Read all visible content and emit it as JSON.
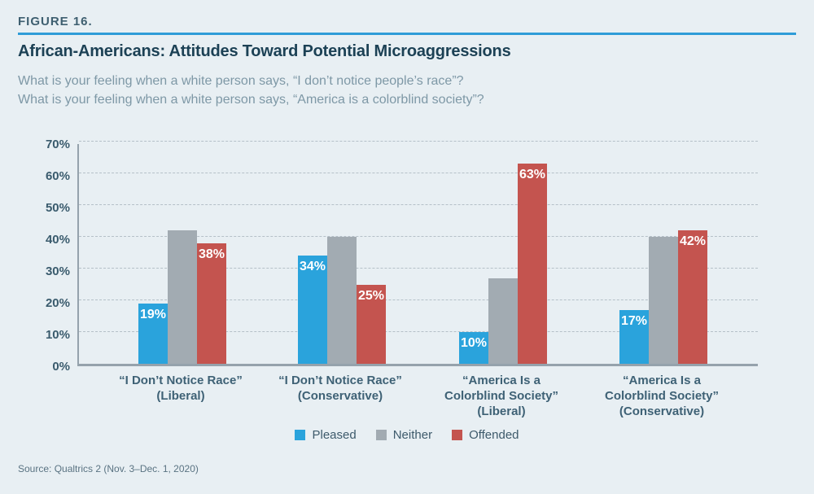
{
  "page": {
    "figure_label": "FIGURE 16.",
    "title": "African-Americans: Attitudes Toward Potential Microaggressions",
    "subtitle_lines": [
      "What is your feeling when a white person says, “I don’t notice people’s race”?",
      "What is your feeling when a white person says, “America is a colorblind society”?"
    ],
    "source": "Source: Qualtrics 2 (Nov. 3–Dec. 1, 2020)"
  },
  "colors": {
    "background": "#e8eff3",
    "accent_rule": "#2f9cd8",
    "title_text": "#1c4155",
    "subtitle_text": "#7e98a6",
    "axis_text": "#3a5b6d",
    "category_text": "#3e6175",
    "gridline": "#b5c0c8",
    "axis_line": "#95a2ac",
    "pleased": "#2aa3dc",
    "neither": "#a2abb2",
    "offended": "#c4544f",
    "bar_label_text": "#ffffff"
  },
  "chart_data": {
    "type": "bar",
    "title": "African-Americans: Attitudes Toward Potential Microaggressions",
    "categories": [
      "“I Don’t Notice Race”\n(Liberal)",
      "“I Don’t Notice Race”\n(Conservative)",
      "“America Is a\nColorblind Society”\n(Liberal)",
      "“America Is a\nColorblind Society”\n(Conservative)"
    ],
    "series": [
      {
        "name": "Pleased",
        "color": "#2aa3dc",
        "values": [
          19,
          34,
          10,
          17
        ],
        "labels": [
          "19%",
          "34%",
          "10%",
          "17%"
        ]
      },
      {
        "name": "Neither",
        "color": "#a2abb2",
        "values": [
          42,
          40,
          27,
          40
        ],
        "labels": [
          "",
          "",
          "",
          ""
        ]
      },
      {
        "name": "Offended",
        "color": "#c4544f",
        "values": [
          38,
          25,
          63,
          42
        ],
        "labels": [
          "38%",
          "25%",
          "63%",
          "42%"
        ]
      }
    ],
    "xlabel": "",
    "ylabel": "",
    "ylim": [
      0,
      70
    ],
    "ytick_step": 10,
    "yticks": [
      "0%",
      "10%",
      "20%",
      "30%",
      "40%",
      "50%",
      "60%",
      "70%"
    ],
    "grid": "horizontal-dashed",
    "legend_position": "bottom-center"
  }
}
